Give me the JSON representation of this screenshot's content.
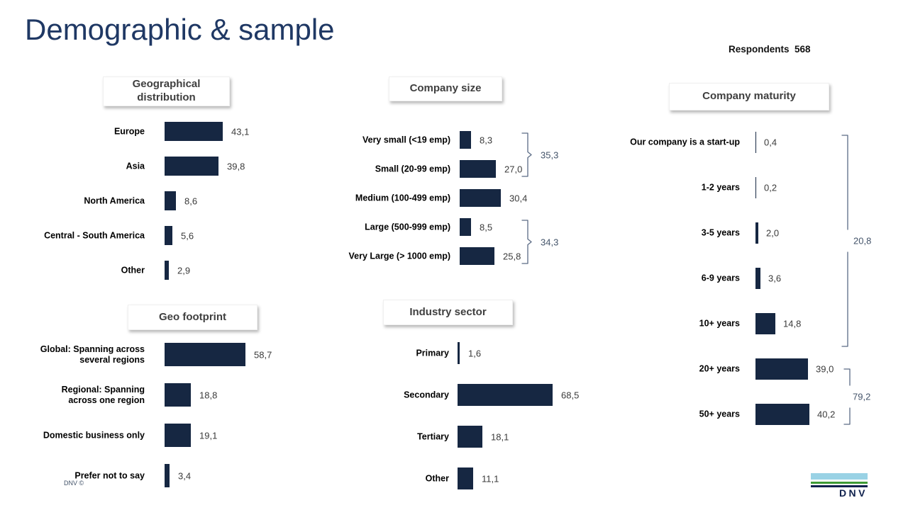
{
  "slide": {
    "title": "Demographic & sample",
    "respondents": "Respondents  568",
    "footer_note": "DNV ©",
    "logo_text": "DNV"
  },
  "colors": {
    "bar": "#162742",
    "slide_title": "#1F3864",
    "panel_title_text": "#3f3f3f",
    "bracket_line": "#5b6b85",
    "bracket_label": "#44546A",
    "logo_lightblue": "#99D2E5",
    "logo_green": "#3F9C35",
    "logo_navy": "#0F214D"
  },
  "chart_data": [
    {
      "id": "geographical-distribution",
      "type": "bar",
      "orientation": "horizontal",
      "title": "Geographical\ndistribution",
      "categories": [
        "Europe",
        "Asia",
        "North America",
        "Central - South America",
        "Other"
      ],
      "values": [
        43.1,
        39.8,
        8.6,
        5.6,
        2.9
      ],
      "value_labels": [
        "43,1",
        "39,8",
        "8,6",
        "5,6",
        "2,9"
      ],
      "brackets": []
    },
    {
      "id": "company-size",
      "type": "bar",
      "orientation": "horizontal",
      "title": "Company size",
      "categories": [
        "Very small (<19 emp)",
        "Small (20-99 emp)",
        "Medium (100-499 emp)",
        "Large (500-999 emp)",
        "Very Large (> 1000 emp)"
      ],
      "values": [
        8.3,
        27.0,
        30.4,
        8.5,
        25.8
      ],
      "value_labels": [
        "8,3",
        "27,0",
        "30,4",
        "8,5",
        "25,8"
      ],
      "brackets": [
        {
          "label": "35,3",
          "from": 0,
          "to": 1
        },
        {
          "label": "34,3",
          "from": 3,
          "to": 4
        }
      ]
    },
    {
      "id": "company-maturity",
      "type": "bar",
      "orientation": "horizontal",
      "title": "Company maturity",
      "categories": [
        "Our company is a start-up",
        "1-2 years",
        "3-5 years",
        "6-9 years",
        "10+ years",
        "20+ years",
        "50+ years"
      ],
      "values": [
        0.4,
        0.2,
        2.0,
        3.6,
        14.8,
        39.0,
        40.2
      ],
      "value_labels": [
        "0,4",
        "0,2",
        "2,0",
        "3,6",
        "14,8",
        "39,0",
        "40,2"
      ],
      "brackets": [
        {
          "label": "20,8",
          "from": 0,
          "to": 4
        },
        {
          "label": "79,2",
          "from": 5,
          "to": 6
        }
      ]
    },
    {
      "id": "geo-footprint",
      "type": "bar",
      "orientation": "horizontal",
      "title": "Geo footprint",
      "categories": [
        "Global: Spanning across\nseveral regions",
        "Regional: Spanning\nacross one region",
        "Domestic business only",
        "Prefer not to say"
      ],
      "values": [
        58.7,
        18.8,
        19.1,
        3.4
      ],
      "value_labels": [
        "58,7",
        "18,8",
        "19,1",
        "3,4"
      ],
      "brackets": []
    },
    {
      "id": "industry-sector",
      "type": "bar",
      "orientation": "horizontal",
      "title": "Industry sector",
      "categories": [
        "Primary",
        "Secondary",
        "Tertiary",
        "Other"
      ],
      "values": [
        1.6,
        68.5,
        18.1,
        11.1
      ],
      "value_labels": [
        "1,6",
        "68,5",
        "18,1",
        "11,1"
      ],
      "brackets": []
    }
  ]
}
